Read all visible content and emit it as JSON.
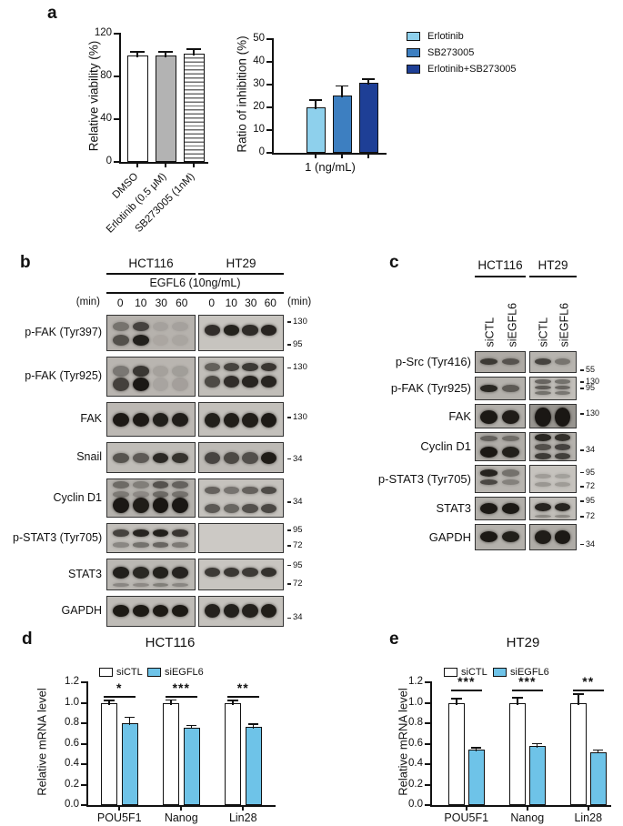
{
  "panel_a": {
    "label": "a"
  },
  "panel_d": {
    "label": "d"
  },
  "panel_e": {
    "label": "e"
  },
  "chart_data": [
    {
      "panel": "a-left",
      "type": "bar",
      "ylabel": "Relative viability (%)",
      "ylim": [
        0,
        120
      ],
      "yticks": [
        0,
        40,
        80,
        120
      ],
      "categories": [
        "DMSO",
        "Erlotinib (0.5 μM)",
        "SB273005 (1nM)"
      ],
      "values": [
        100,
        100,
        101
      ],
      "errors": [
        2.5,
        2.5,
        4
      ],
      "bar_fills": [
        "#ffffff",
        "#b3b3b3",
        "hatch"
      ]
    },
    {
      "panel": "a-right",
      "type": "bar",
      "ylabel": "Ratio of inhibition (%)",
      "xlabel": "1 (ng/mL)",
      "ylim": [
        0,
        50
      ],
      "yticks": [
        0,
        10,
        20,
        30,
        40,
        50
      ],
      "categories": [
        "1 (ng/mL)"
      ],
      "series": [
        {
          "name": "Erlotinib",
          "color": "#8ed0ec",
          "values": [
            20
          ],
          "errors": [
            3
          ]
        },
        {
          "name": "SB273005",
          "color": "#3d7fc1",
          "values": [
            25.3
          ],
          "errors": [
            3.8
          ]
        },
        {
          "name": "Erlotinib+SB273005",
          "color": "#1e3f96",
          "values": [
            30.8
          ],
          "errors": [
            1.2
          ]
        }
      ],
      "legend_position": "right"
    },
    {
      "panel": "d",
      "type": "bar",
      "title": "HCT116",
      "ylabel": "Relative mRNA level",
      "ylim": [
        0,
        1.2
      ],
      "yticks": [
        0,
        0.2,
        0.4,
        0.6,
        0.8,
        1,
        1.2
      ],
      "categories": [
        "POU5F1",
        "Nanog",
        "Lin28"
      ],
      "series": [
        {
          "name": "siCTL",
          "color": "#ffffff",
          "values": [
            1.0,
            1.0,
            1.0
          ],
          "errors": [
            0.015,
            0.02,
            0.015
          ]
        },
        {
          "name": "siEGFL6",
          "color": "#6ec3e8",
          "values": [
            0.8,
            0.76,
            0.765
          ],
          "errors": [
            0.05,
            0.012,
            0.02
          ]
        }
      ],
      "significance": [
        "*",
        "***",
        "**"
      ]
    },
    {
      "panel": "e",
      "type": "bar",
      "title": "HT29",
      "ylabel": "Relative mRNA level",
      "ylim": [
        0,
        1.2
      ],
      "yticks": [
        0,
        0.2,
        0.4,
        0.6,
        0.8,
        1,
        1.2
      ],
      "categories": [
        "POU5F1",
        "Nanog",
        "Lin28"
      ],
      "series": [
        {
          "name": "siCTL",
          "color": "#ffffff",
          "values": [
            1.0,
            1.0,
            1.0
          ],
          "errors": [
            0.035,
            0.045,
            0.08
          ]
        },
        {
          "name": "siEGFL6",
          "color": "#6ec3e8",
          "values": [
            0.54,
            0.58,
            0.52
          ],
          "errors": [
            0.015,
            0.012,
            0.012
          ]
        }
      ],
      "significance": [
        "***",
        "***",
        "**"
      ]
    }
  ],
  "panel_b": {
    "label": "b",
    "cell_lines": [
      "HCT116",
      "HT29"
    ],
    "treatment_label": "EGFL6 (10ng/mL)",
    "time_unit": "(min)",
    "timepoints": [
      "0",
      "10",
      "30",
      "60"
    ],
    "rows": [
      {
        "label": "p-FAK (Tyr397)",
        "markers": [
          {
            "value": "130",
            "pos": 0.2
          },
          {
            "value": "95",
            "pos": 0.82
          }
        ],
        "groups": [
          {
            "bg": "#b6b2ad",
            "bands": [
              {
                "y": 0.3,
                "h": 0.26,
                "lanes": [
                  0.4,
                  0.7,
                  0.1,
                  0.1
                ]
              },
              {
                "y": 0.68,
                "h": 0.3,
                "lanes": [
                  0.62,
                  0.92,
                  0.07,
                  0.08
                ]
              }
            ]
          },
          {
            "bg": "#c7c4bf",
            "bands": [
              {
                "y": 0.4,
                "h": 0.28,
                "lanes": [
                  0.85,
                  0.92,
                  0.86,
                  0.9
                ]
              }
            ]
          }
        ]
      },
      {
        "label": "p-FAK (Tyr925)",
        "markers": [
          {
            "value": "130",
            "pos": 0.28
          }
        ],
        "groups": [
          {
            "bg": "#b9b5b0",
            "bands": [
              {
                "y": 0.34,
                "h": 0.26,
                "lanes": [
                  0.38,
                  0.78,
                  0.12,
                  0.14
                ]
              },
              {
                "y": 0.66,
                "h": 0.34,
                "lanes": [
                  0.72,
                  0.97,
                  0.1,
                  0.13
                ]
              }
            ]
          },
          {
            "bg": "#c1beb9",
            "bands": [
              {
                "y": 0.24,
                "h": 0.22,
                "lanes": [
                  0.55,
                  0.72,
                  0.78,
                  0.8
                ]
              },
              {
                "y": 0.6,
                "h": 0.28,
                "lanes": [
                  0.68,
                  0.85,
                  0.9,
                  0.9
                ]
              }
            ]
          }
        ]
      },
      {
        "label": "FAK",
        "markers": [
          {
            "value": "130",
            "pos": 0.45
          }
        ],
        "groups": [
          {
            "bg": "#bcb8b3",
            "bands": [
              {
                "y": 0.48,
                "h": 0.4,
                "lanes": [
                  0.96,
                  0.96,
                  0.93,
                  0.94
                ]
              }
            ]
          },
          {
            "bg": "#c3c0bb",
            "bands": [
              {
                "y": 0.5,
                "h": 0.42,
                "lanes": [
                  0.93,
                  0.94,
                  0.94,
                  0.96
                ]
              }
            ]
          }
        ]
      },
      {
        "label": "Snail",
        "markers": [
          {
            "value": "34",
            "pos": 0.55
          }
        ],
        "groups": [
          {
            "bg": "#c0bdb8",
            "bands": [
              {
                "y": 0.48,
                "h": 0.34,
                "lanes": [
                  0.62,
                  0.58,
                  0.88,
                  0.82
                ]
              }
            ]
          },
          {
            "bg": "#bdbab5",
            "bands": [
              {
                "y": 0.48,
                "h": 0.38,
                "lanes": [
                  0.7,
                  0.68,
                  0.64,
                  0.95
                ]
              }
            ]
          }
        ]
      },
      {
        "label": "Cyclin D1",
        "markers": [
          {
            "value": "34",
            "pos": 0.6
          }
        ],
        "groups": [
          {
            "bg": "#b4b1ac",
            "bands": [
              {
                "y": 0.14,
                "h": 0.18,
                "lanes": [
                  0.45,
                  0.32,
                  0.6,
                  0.5
                ]
              },
              {
                "y": 0.38,
                "h": 0.16,
                "lanes": [
                  0.35,
                  0.25,
                  0.45,
                  0.4
                ]
              },
              {
                "y": 0.66,
                "h": 0.4,
                "lanes": [
                  0.97,
                  0.94,
                  0.98,
                  0.97
                ]
              }
            ]
          },
          {
            "bg": "#c5c2bd",
            "bands": [
              {
                "y": 0.28,
                "h": 0.2,
                "lanes": [
                  0.55,
                  0.45,
                  0.55,
                  0.68
                ]
              },
              {
                "y": 0.74,
                "h": 0.24,
                "lanes": [
                  0.6,
                  0.52,
                  0.65,
                  0.7
                ]
              }
            ]
          }
        ]
      },
      {
        "label": "p-STAT3 (Tyr705)",
        "markers": [
          {
            "value": "95",
            "pos": 0.25
          },
          {
            "value": "72",
            "pos": 0.75
          }
        ],
        "groups": [
          {
            "bg": "#c2bfba",
            "bands": [
              {
                "y": 0.3,
                "h": 0.26,
                "lanes": [
                  0.72,
                  0.9,
                  0.93,
                  0.8
                ]
              },
              {
                "y": 0.7,
                "h": 0.16,
                "lanes": [
                  0.32,
                  0.45,
                  0.52,
                  0.4
                ]
              }
            ]
          },
          {
            "bg": "#ccc9c5",
            "bands": []
          }
        ]
      },
      {
        "label": "STAT3",
        "markers": [
          {
            "value": "95",
            "pos": 0.22
          },
          {
            "value": "72",
            "pos": 0.8
          }
        ],
        "groups": [
          {
            "bg": "#bbb8b3",
            "bands": [
              {
                "y": 0.42,
                "h": 0.36,
                "lanes": [
                  0.93,
                  0.88,
                  0.92,
                  0.9
                ]
              },
              {
                "y": 0.8,
                "h": 0.12,
                "lanes": [
                  0.3,
                  0.28,
                  0.35,
                  0.3
                ]
              }
            ]
          },
          {
            "bg": "#c8c5c0",
            "bands": [
              {
                "y": 0.4,
                "h": 0.3,
                "lanes": [
                  0.78,
                  0.8,
                  0.78,
                  0.83
                ]
              }
            ]
          }
        ]
      },
      {
        "label": "GAPDH",
        "markers": [
          {
            "value": "34",
            "pos": 0.72
          }
        ],
        "groups": [
          {
            "bg": "#bfbcb7",
            "bands": [
              {
                "y": 0.46,
                "h": 0.4,
                "lanes": [
                  0.96,
                  0.96,
                  0.96,
                  0.96
                ]
              }
            ]
          },
          {
            "bg": "#c5c2bd",
            "bands": [
              {
                "y": 0.46,
                "h": 0.44,
                "lanes": [
                  0.92,
                  0.93,
                  0.92,
                  0.94
                ]
              }
            ]
          }
        ]
      }
    ]
  },
  "panel_c": {
    "label": "c",
    "cell_lines": [
      "HCT116",
      "HT29"
    ],
    "lane_labels": [
      "siCTL",
      "siEGFL6"
    ],
    "rows": [
      {
        "label": "p-Src (Tyr416)",
        "markers": [
          {
            "value": "55",
            "pos": 0.88
          }
        ],
        "groups": [
          {
            "bg": "#aeaaa5",
            "bands": [
              {
                "y": 0.44,
                "h": 0.3,
                "lanes": [
                  0.75,
                  0.58
                ]
              }
            ]
          },
          {
            "bg": "#b7b4af",
            "bands": [
              {
                "y": 0.44,
                "h": 0.3,
                "lanes": [
                  0.7,
                  0.4
                ]
              }
            ]
          }
        ]
      },
      {
        "label": "p-FAK (Tyr925)",
        "markers": [
          {
            "value": "130",
            "pos": 0.22
          },
          {
            "value": "95",
            "pos": 0.5
          }
        ],
        "groups": [
          {
            "bg": "#b4b1ac",
            "bands": [
              {
                "y": 0.46,
                "h": 0.34,
                "lanes": [
                  0.88,
                  0.55
                ]
              }
            ]
          },
          {
            "bg": "#c2bfba",
            "bands": [
              {
                "y": 0.18,
                "h": 0.18,
                "lanes": [
                  0.52,
                  0.45
                ]
              },
              {
                "y": 0.42,
                "h": 0.18,
                "lanes": [
                  0.58,
                  0.52
                ]
              },
              {
                "y": 0.66,
                "h": 0.16,
                "lanes": [
                  0.45,
                  0.42
                ]
              }
            ]
          }
        ]
      },
      {
        "label": "FAK",
        "markers": [
          {
            "value": "130",
            "pos": 0.4
          }
        ],
        "groups": [
          {
            "bg": "#b1aea9",
            "bands": [
              {
                "y": 0.5,
                "h": 0.55,
                "lanes": [
                  0.96,
                  0.94
                ]
              }
            ]
          },
          {
            "bg": "#989590",
            "bands": [
              {
                "y": 0.5,
                "h": 0.8,
                "lanes": [
                  0.97,
                  0.97
                ]
              }
            ]
          }
        ]
      },
      {
        "label": "Cyclin D1",
        "markers": [
          {
            "value": "34",
            "pos": 0.62
          }
        ],
        "groups": [
          {
            "bg": "#b0ada8",
            "bands": [
              {
                "y": 0.18,
                "h": 0.2,
                "lanes": [
                  0.5,
                  0.42
                ]
              },
              {
                "y": 0.66,
                "h": 0.38,
                "lanes": [
                  0.97,
                  0.92
                ]
              }
            ]
          },
          {
            "bg": "#b5b2ad",
            "bands": [
              {
                "y": 0.16,
                "h": 0.24,
                "lanes": [
                  0.88,
                  0.82
                ]
              },
              {
                "y": 0.48,
                "h": 0.2,
                "lanes": [
                  0.62,
                  0.7
                ]
              },
              {
                "y": 0.8,
                "h": 0.22,
                "lanes": [
                  0.75,
                  0.72
                ]
              }
            ]
          }
        ]
      },
      {
        "label": "p-STAT3 (Tyr705)",
        "markers": [
          {
            "value": "95",
            "pos": 0.28
          },
          {
            "value": "72",
            "pos": 0.78
          }
        ],
        "groups": [
          {
            "bg": "#b8b5b0",
            "bands": [
              {
                "y": 0.26,
                "h": 0.24,
                "lanes": [
                  0.9,
                  0.42
                ]
              },
              {
                "y": 0.58,
                "h": 0.2,
                "lanes": [
                  0.68,
                  0.32
                ]
              }
            ]
          },
          {
            "bg": "#c6c3be",
            "bands": [
              {
                "y": 0.36,
                "h": 0.16,
                "lanes": [
                  0.22,
                  0.2
                ]
              },
              {
                "y": 0.66,
                "h": 0.16,
                "lanes": [
                  0.25,
                  0.22
                ]
              }
            ]
          }
        ]
      },
      {
        "label": "STAT3",
        "markers": [
          {
            "value": "95",
            "pos": 0.2
          },
          {
            "value": "72",
            "pos": 0.85
          }
        ],
        "groups": [
          {
            "bg": "#b2afaa",
            "bands": [
              {
                "y": 0.46,
                "h": 0.46,
                "lanes": [
                  0.96,
                  0.96
                ]
              }
            ]
          },
          {
            "bg": "#c1beb9",
            "bands": [
              {
                "y": 0.4,
                "h": 0.36,
                "lanes": [
                  0.9,
                  0.9
                ]
              },
              {
                "y": 0.78,
                "h": 0.12,
                "lanes": [
                  0.32,
                  0.32
                ]
              }
            ]
          }
        ]
      },
      {
        "label": "GAPDH",
        "markers": [
          {
            "value": "34",
            "pos": 0.78
          }
        ],
        "groups": [
          {
            "bg": "#b4b1ac",
            "bands": [
              {
                "y": 0.46,
                "h": 0.42,
                "lanes": [
                  0.96,
                  0.93
                ]
              }
            ]
          },
          {
            "bg": "#afaca7",
            "bands": [
              {
                "y": 0.46,
                "h": 0.5,
                "lanes": [
                  0.94,
                  0.96
                ]
              }
            ]
          }
        ]
      }
    ]
  }
}
